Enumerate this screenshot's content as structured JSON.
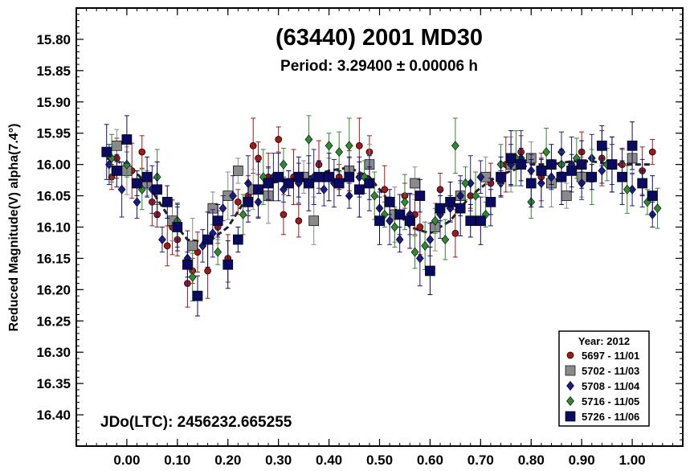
{
  "chart_data": {
    "type": "scatter",
    "title": "(63440) 2001 MD30",
    "subtitle": "Period: 3.29400 ± 0.00006 h",
    "xlabel": "",
    "ylabel": "Reduced Magnitude(V) alpha(7.4°)",
    "xlim": [
      -0.1,
      1.1
    ],
    "ylim": [
      15.75,
      16.45
    ],
    "y_inverted": true,
    "x_ticks": [
      "0.00",
      "0.10",
      "0.20",
      "0.30",
      "0.40",
      "0.50",
      "0.60",
      "0.70",
      "0.80",
      "0.90",
      "1.00"
    ],
    "x_tick_values": [
      0,
      0.1,
      0.2,
      0.3,
      0.4,
      0.5,
      0.6,
      0.7,
      0.8,
      0.9,
      1.0
    ],
    "y_ticks": [
      "15.80",
      "15.85",
      "15.90",
      "15.95",
      "16.00",
      "16.05",
      "16.10",
      "16.15",
      "16.20",
      "16.25",
      "16.30",
      "16.35",
      "16.40"
    ],
    "y_tick_values": [
      15.8,
      15.85,
      15.9,
      15.95,
      16.0,
      16.05,
      16.1,
      16.15,
      16.2,
      16.25,
      16.3,
      16.35,
      16.4
    ],
    "annotation": "JDo(LTC): 2456232.665255",
    "legend_title": "Year: 2012",
    "legend_position": "bottom-right",
    "grid": false,
    "fit_curve": {
      "style": "dashed",
      "color": "#222222",
      "x": [
        -0.04,
        0.0,
        0.04,
        0.08,
        0.12,
        0.16,
        0.2,
        0.24,
        0.28,
        0.32,
        0.36,
        0.4,
        0.44,
        0.48,
        0.52,
        0.56,
        0.6,
        0.64,
        0.68,
        0.72,
        0.76,
        0.8,
        0.84,
        0.88,
        0.92,
        0.96,
        1.0,
        1.04
      ],
      "y": [
        15.99,
        16.0,
        16.03,
        16.08,
        16.12,
        16.125,
        16.1,
        16.05,
        16.03,
        16.025,
        16.02,
        16.01,
        16.005,
        16.02,
        16.06,
        16.1,
        16.11,
        16.09,
        16.05,
        16.025,
        16.01,
        16.0,
        16.0,
        15.995,
        15.995,
        16.0,
        16.0,
        16.0
      ]
    },
    "series": [
      {
        "name": "5697 - 11/01",
        "color": "#a01818",
        "marker": "circle",
        "x": [
          -0.03,
          -0.02,
          0.01,
          0.03,
          0.05,
          0.06,
          0.08,
          0.09,
          0.1,
          0.12,
          0.13,
          0.14,
          0.16,
          0.18,
          0.2,
          0.22,
          0.24,
          0.25,
          0.26,
          0.28,
          0.3,
          0.31,
          0.33,
          0.34,
          0.38,
          0.42,
          0.44,
          0.46,
          0.48,
          0.51,
          0.55,
          0.57,
          0.58,
          0.62,
          0.65,
          0.68,
          0.72,
          0.75,
          0.78,
          0.82,
          0.86,
          0.9,
          0.94,
          0.98,
          1.02,
          1.04
        ],
        "y": [
          16.02,
          15.99,
          16.01,
          15.98,
          16.06,
          16.08,
          16.13,
          16.1,
          16.12,
          16.19,
          16.17,
          16.14,
          16.17,
          16.1,
          16.15,
          16.06,
          16.05,
          15.97,
          15.99,
          16.02,
          15.96,
          16.08,
          16.02,
          16.09,
          16.0,
          16.02,
          16.01,
          15.97,
          15.98,
          16.04,
          16.05,
          16.08,
          16.1,
          16.04,
          16.11,
          16.05,
          16.03,
          16.0,
          15.98,
          16.02,
          16.0,
          15.98,
          15.99,
          16.0,
          16.01,
          15.98
        ]
      },
      {
        "name": "5702 - 11/03",
        "color": "#8a8a8a",
        "marker": "square",
        "x": [
          -0.02,
          0.0,
          0.04,
          0.09,
          0.13,
          0.17,
          0.2,
          0.22,
          0.25,
          0.28,
          0.35,
          0.37,
          0.44,
          0.48,
          0.53,
          0.57,
          0.61,
          0.66,
          0.71,
          0.76,
          0.8,
          0.84,
          0.87,
          0.9,
          0.96,
          1.0
        ],
        "y": [
          15.97,
          16.01,
          16.03,
          16.09,
          16.13,
          16.07,
          16.05,
          16.01,
          16.04,
          16.05,
          16.02,
          16.09,
          16.01,
          16.0,
          16.08,
          16.03,
          16.1,
          16.05,
          16.02,
          16.0,
          15.99,
          16.03,
          16.05,
          16.02,
          16.0,
          15.99
        ]
      },
      {
        "name": "5708 - 11/04",
        "color": "#1c1c86",
        "marker": "diamond",
        "x": [
          -0.035,
          -0.01,
          0.02,
          0.05,
          0.07,
          0.1,
          0.12,
          0.15,
          0.17,
          0.19,
          0.21,
          0.24,
          0.26,
          0.29,
          0.31,
          0.34,
          0.37,
          0.39,
          0.41,
          0.44,
          0.46,
          0.48,
          0.5,
          0.52,
          0.54,
          0.56,
          0.58,
          0.6,
          0.62,
          0.64,
          0.66,
          0.68,
          0.7,
          0.72,
          0.74,
          0.76,
          0.78,
          0.8,
          0.82,
          0.84,
          0.86,
          0.88,
          0.9,
          0.92,
          0.94,
          0.96,
          0.98,
          1.0,
          1.02,
          1.04
        ],
        "y": [
          16.0,
          16.04,
          16.06,
          16.04,
          16.12,
          16.1,
          16.15,
          16.13,
          16.11,
          16.07,
          16.05,
          16.03,
          16.06,
          16.02,
          16.04,
          16.03,
          16.02,
          16.04,
          16.03,
          16.05,
          16.02,
          16.03,
          16.07,
          16.09,
          16.12,
          16.08,
          16.15,
          16.12,
          16.08,
          16.07,
          16.05,
          16.03,
          16.02,
          16.06,
          16.03,
          16.0,
          15.99,
          16.01,
          16.03,
          16.02,
          15.98,
          16.0,
          16.03,
          15.99,
          16.01,
          16.0,
          16.02,
          16.04,
          16.03,
          16.08
        ]
      },
      {
        "name": "5716 - 11/05",
        "color": "#2f8a2f",
        "marker": "diamond",
        "x": [
          -0.03,
          0.0,
          0.03,
          0.06,
          0.1,
          0.13,
          0.18,
          0.23,
          0.27,
          0.31,
          0.36,
          0.4,
          0.42,
          0.44,
          0.47,
          0.49,
          0.51,
          0.53,
          0.55,
          0.57,
          0.59,
          0.61,
          0.63,
          0.65,
          0.67,
          0.69,
          0.71,
          0.74,
          0.77,
          0.8,
          0.83,
          0.86,
          0.89,
          0.92,
          0.95,
          0.99,
          1.03,
          1.05
        ],
        "y": [
          15.99,
          16.0,
          16.04,
          16.02,
          16.09,
          16.18,
          16.14,
          16.08,
          16.02,
          16.0,
          15.96,
          15.97,
          15.98,
          15.97,
          16.02,
          16.05,
          16.08,
          16.1,
          16.06,
          16.14,
          16.13,
          16.09,
          16.12,
          15.97,
          16.03,
          16.05,
          16.08,
          16.0,
          15.99,
          16.06,
          15.98,
          16.0,
          15.99,
          16.02,
          16.0,
          16.04,
          16.06,
          16.07
        ]
      },
      {
        "name": "5726 - 11/06",
        "color": "#0a0a60",
        "marker": "square",
        "x": [
          -0.04,
          -0.02,
          0.0,
          0.02,
          0.04,
          0.06,
          0.08,
          0.1,
          0.12,
          0.14,
          0.16,
          0.18,
          0.2,
          0.22,
          0.24,
          0.26,
          0.28,
          0.3,
          0.32,
          0.34,
          0.36,
          0.38,
          0.4,
          0.42,
          0.44,
          0.46,
          0.48,
          0.5,
          0.52,
          0.54,
          0.56,
          0.58,
          0.6,
          0.62,
          0.64,
          0.66,
          0.68,
          0.7,
          0.72,
          0.74,
          0.76,
          0.78,
          0.8,
          0.82,
          0.84,
          0.86,
          0.88,
          0.9,
          0.92,
          0.94,
          0.96,
          0.98,
          1.0,
          1.02,
          1.04
        ],
        "y": [
          15.98,
          16.01,
          15.96,
          16.03,
          16.02,
          16.04,
          16.06,
          16.1,
          16.16,
          16.21,
          16.12,
          16.09,
          16.16,
          16.12,
          16.06,
          16.04,
          16.03,
          16.02,
          16.03,
          16.02,
          16.03,
          16.02,
          16.02,
          16.03,
          16.02,
          16.04,
          16.03,
          16.09,
          16.06,
          16.08,
          16.09,
          16.05,
          16.17,
          16.07,
          16.06,
          16.07,
          16.09,
          16.09,
          16.06,
          16.02,
          15.99,
          16.0,
          16.03,
          16.01,
          16.0,
          16.02,
          16.01,
          16.0,
          16.02,
          15.97,
          16.0,
          16.02,
          15.97,
          16.03,
          16.05
        ]
      }
    ]
  }
}
